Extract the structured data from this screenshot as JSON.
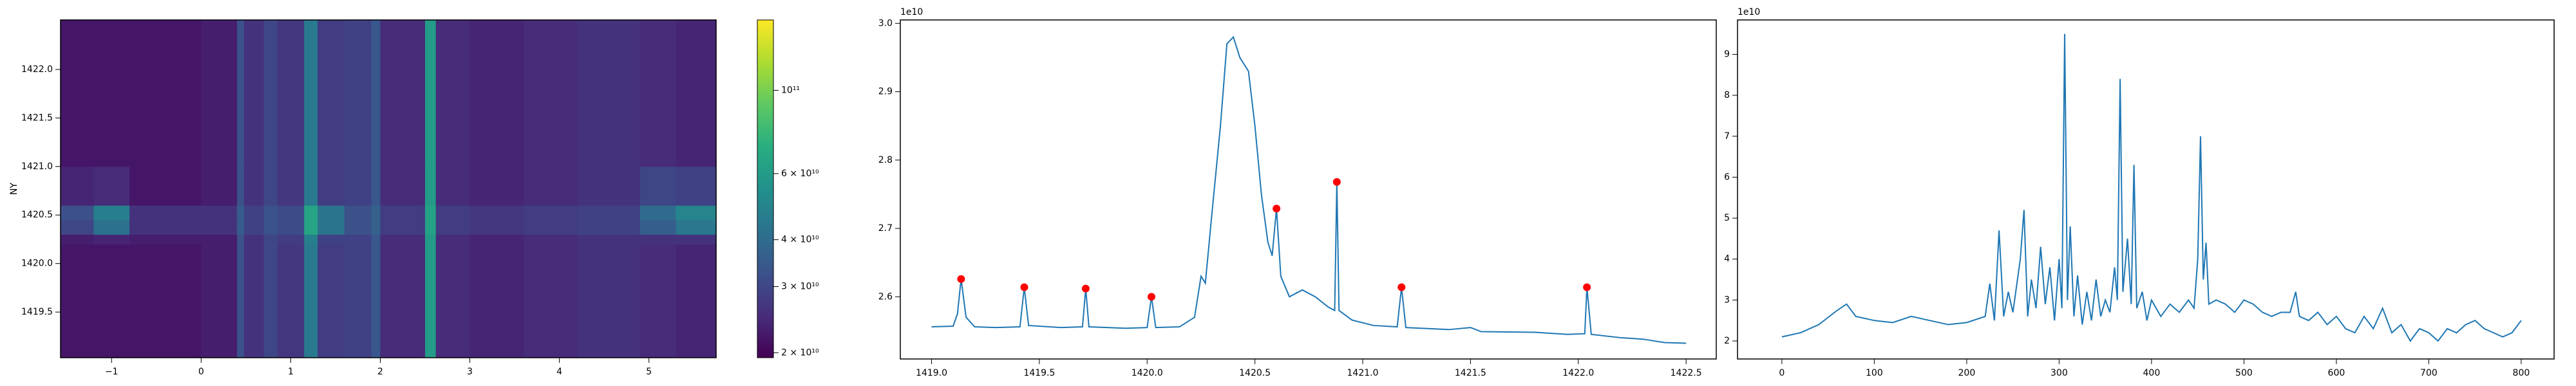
{
  "chart_data": [
    {
      "type": "heatmap",
      "ylabel": "NY",
      "x_edges": [
        -1.57,
        -1.2,
        -0.8,
        0,
        0.4,
        0.48,
        0.7,
        0.85,
        1.15,
        1.3,
        1.6,
        1.9,
        2.0,
        2.5,
        2.62,
        3.0,
        3.6,
        4.2,
        4.9,
        5.3,
        5.75
      ],
      "y_edges": [
        1419.03,
        1420.2,
        1420.3,
        1420.45,
        1420.6,
        1421.0,
        1422.51
      ],
      "z": [
        [
          22000000000.0,
          22000000000.0,
          22000000000.0,
          23000000000.0,
          32000000000.0,
          26000000000.0,
          30000000000.0,
          27000000000.0,
          45000000000.0,
          28000000000.0,
          29000000000.0,
          34000000000.0,
          25000000000.0,
          60000000000.0,
          25000000000.0,
          24000000000.0,
          25000000000.0,
          26000000000.0,
          25000000000.0,
          24000000000.0
        ],
        [
          23000000000.0,
          24000000000.0,
          23000000000.0,
          23000000000.0,
          32000000000.0,
          26000000000.0,
          30000000000.0,
          28000000000.0,
          47000000000.0,
          29000000000.0,
          29000000000.0,
          34000000000.0,
          25000000000.0,
          60000000000.0,
          25000000000.0,
          24000000000.0,
          25000000000.0,
          26000000000.0,
          26000000000.0,
          26000000000.0
        ],
        [
          30000000000.0,
          42000000000.0,
          26000000000.0,
          26000000000.0,
          35000000000.0,
          29000000000.0,
          33000000000.0,
          31000000000.0,
          65000000000.0,
          43000000000.0,
          32000000000.0,
          37000000000.0,
          28000000000.0,
          63000000000.0,
          28000000000.0,
          27000000000.0,
          28000000000.0,
          29000000000.0,
          36000000000.0,
          44000000000.0
        ],
        [
          32000000000.0,
          47000000000.0,
          26000000000.0,
          26000000000.0,
          35000000000.0,
          29000000000.0,
          33000000000.0,
          31000000000.0,
          65000000000.0,
          43000000000.0,
          32000000000.0,
          37000000000.0,
          28000000000.0,
          63000000000.0,
          28000000000.0,
          27000000000.0,
          28000000000.0,
          29000000000.0,
          40000000000.0,
          49000000000.0
        ],
        [
          24000000000.0,
          25000000000.0,
          22000000000.0,
          23000000000.0,
          32000000000.0,
          26000000000.0,
          30000000000.0,
          27000000000.0,
          45000000000.0,
          28000000000.0,
          29000000000.0,
          34000000000.0,
          25000000000.0,
          60000000000.0,
          25000000000.0,
          24000000000.0,
          25000000000.0,
          26000000000.0,
          30000000000.0,
          29000000000.0
        ],
        [
          22000000000.0,
          22000000000.0,
          22000000000.0,
          23000000000.0,
          32000000000.0,
          26000000000.0,
          30000000000.0,
          27000000000.0,
          45000000000.0,
          28000000000.0,
          29000000000.0,
          34000000000.0,
          25000000000.0,
          60000000000.0,
          25000000000.0,
          24000000000.0,
          25000000000.0,
          26000000000.0,
          25000000000.0,
          24000000000.0
        ]
      ],
      "xlim": [
        -1.57,
        5.75
      ],
      "ylim": [
        1419.03,
        1422.51
      ],
      "xticks": [
        {
          "value": -1,
          "label": "−1"
        },
        0,
        1,
        2,
        3,
        4,
        5
      ],
      "yticks": [
        1419.5,
        {
          "value": 1420,
          "label": "1420.0"
        },
        1420.5,
        {
          "value": 1421,
          "label": "1421.0"
        },
        1421.5,
        {
          "value": 1422,
          "label": "1422.0"
        }
      ],
      "color_scale": "log",
      "clim": [
        19400000000.0,
        154000000000.0
      ],
      "colorbar_ticks": [
        {
          "value": 20000000000.0,
          "label": "2 × 10¹⁰"
        },
        {
          "value": 30000000000.0,
          "label": "3 × 10¹⁰"
        },
        {
          "value": 40000000000.0,
          "label": "4 × 10¹⁰"
        },
        {
          "value": 60000000000.0,
          "label": "6 × 10¹⁰"
        },
        {
          "value": 100000000000.0,
          "label": "10¹¹"
        }
      ]
    },
    {
      "type": "line",
      "offset_text": "1e10",
      "series": [
        {
          "color": "#1f77b4",
          "x": [
            1419.0,
            1419.1,
            1419.12,
            1419.137,
            1419.16,
            1419.2,
            1419.3,
            1419.41,
            1419.43,
            1419.45,
            1419.6,
            1419.7,
            1419.715,
            1419.73,
            1419.9,
            1420.0,
            1420.02,
            1420.04,
            1420.15,
            1420.22,
            1420.25,
            1420.27,
            1420.3,
            1420.34,
            1420.37,
            1420.4,
            1420.43,
            1420.47,
            1420.5,
            1420.53,
            1420.56,
            1420.58,
            1420.6,
            1420.62,
            1420.66,
            1420.72,
            1420.78,
            1420.84,
            1420.87,
            1420.88,
            1420.89,
            1420.95,
            1421.05,
            1421.16,
            1421.18,
            1421.2,
            1421.4,
            1421.5,
            1421.55,
            1421.8,
            1421.95,
            1422.03,
            1422.04,
            1422.06,
            1422.2,
            1422.3,
            1422.4,
            1422.5
          ],
          "values": [
            2.556,
            2.557,
            2.575,
            2.626,
            2.57,
            2.556,
            2.555,
            2.556,
            2.614,
            2.558,
            2.555,
            2.556,
            2.612,
            2.556,
            2.554,
            2.555,
            2.6,
            2.555,
            2.556,
            2.57,
            2.63,
            2.62,
            2.72,
            2.85,
            2.97,
            2.98,
            2.95,
            2.93,
            2.85,
            2.75,
            2.68,
            2.66,
            2.729,
            2.63,
            2.6,
            2.61,
            2.6,
            2.585,
            2.58,
            2.768,
            2.58,
            2.566,
            2.558,
            2.556,
            2.614,
            2.555,
            2.552,
            2.555,
            2.549,
            2.548,
            2.545,
            2.546,
            2.614,
            2.545,
            2.54,
            2.538,
            2.533,
            2.532
          ]
        }
      ],
      "peaks": {
        "color": "#ff0000",
        "x": [
          1419.137,
          1419.43,
          1419.715,
          1420.02,
          1420.6,
          1420.88,
          1421.18,
          1422.04
        ],
        "values": [
          2.626,
          2.614,
          2.612,
          2.6,
          2.729,
          2.768,
          2.614,
          2.614
        ]
      },
      "xlim": [
        1418.855,
        1422.64
      ],
      "ylim": [
        2.509,
        3.005
      ],
      "xticks": [
        {
          "value": 1419,
          "label": "1419.0"
        },
        1419.5,
        {
          "value": 1420,
          "label": "1420.0"
        },
        1420.5,
        {
          "value": 1421,
          "label": "1421.0"
        },
        1421.5,
        {
          "value": 1422,
          "label": "1422.0"
        },
        1422.5
      ],
      "yticks": [
        2.6,
        2.7,
        2.8,
        2.9,
        {
          "value": 3,
          "label": "3.0"
        }
      ]
    },
    {
      "type": "line",
      "offset_text": "1e10",
      "series": [
        {
          "color": "#1f77b4",
          "x": [
            0,
            20,
            40,
            60,
            70,
            80,
            100,
            120,
            140,
            160,
            180,
            200,
            220,
            225,
            230,
            235,
            240,
            245,
            250,
            258,
            262,
            266,
            270,
            275,
            280,
            285,
            290,
            295,
            300,
            303,
            306,
            309,
            312,
            316,
            320,
            325,
            330,
            335,
            340,
            345,
            350,
            355,
            360,
            363,
            366,
            369,
            374,
            378,
            381,
            384,
            390,
            395,
            400,
            410,
            420,
            430,
            440,
            446,
            450,
            453,
            456,
            459,
            462,
            470,
            480,
            490,
            500,
            510,
            520,
            530,
            540,
            550,
            556,
            560,
            570,
            580,
            590,
            600,
            610,
            620,
            630,
            640,
            650,
            660,
            670,
            680,
            690,
            700,
            710,
            720,
            730,
            740,
            750,
            760,
            770,
            780,
            790,
            800
          ],
          "values": [
            2.1,
            2.2,
            2.4,
            2.75,
            2.9,
            2.6,
            2.5,
            2.45,
            2.6,
            2.5,
            2.4,
            2.45,
            2.6,
            3.4,
            2.5,
            4.7,
            2.6,
            3.2,
            2.7,
            4.0,
            5.2,
            2.6,
            3.5,
            2.8,
            4.3,
            2.9,
            3.8,
            2.5,
            4.0,
            2.8,
            9.5,
            3.0,
            4.8,
            2.6,
            3.6,
            2.4,
            3.2,
            2.5,
            3.5,
            2.6,
            3.0,
            2.7,
            3.8,
            3.0,
            8.4,
            3.2,
            4.5,
            2.9,
            6.3,
            2.8,
            3.2,
            2.5,
            3.0,
            2.6,
            2.9,
            2.7,
            3.0,
            2.8,
            4.0,
            7.0,
            3.5,
            4.4,
            2.9,
            3.0,
            2.9,
            2.7,
            3.0,
            2.9,
            2.7,
            2.6,
            2.7,
            2.7,
            3.2,
            2.6,
            2.5,
            2.7,
            2.4,
            2.6,
            2.3,
            2.2,
            2.6,
            2.3,
            2.8,
            2.2,
            2.4,
            2.0,
            2.3,
            2.2,
            2.0,
            2.3,
            2.2,
            2.4,
            2.5,
            2.3,
            2.2,
            2.1,
            2.2,
            2.5
          ]
        }
      ],
      "xlim": [
        -48,
        835.6
      ],
      "ylim": [
        1.56,
        9.84
      ],
      "xticks": [
        0,
        100,
        200,
        300,
        400,
        500,
        600,
        700,
        800
      ],
      "yticks": [
        2,
        3,
        4,
        5,
        6,
        7,
        8,
        9
      ]
    }
  ]
}
